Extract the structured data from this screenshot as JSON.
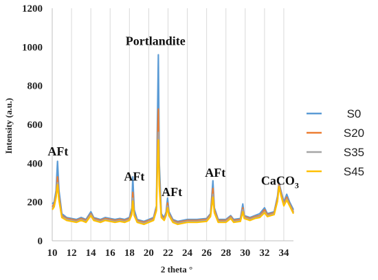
{
  "chart_data": {
    "type": "line",
    "xlabel": "2 theta °",
    "ylabel": "Intensity (a.u.)",
    "xlim": [
      10,
      35
    ],
    "ylim": [
      0,
      1200
    ],
    "x_ticks": [
      "10",
      "12",
      "14",
      "16",
      "18",
      "20",
      "22",
      "24",
      "26",
      "28",
      "30",
      "32",
      "34"
    ],
    "y_ticks": [
      "0",
      "200",
      "400",
      "600",
      "800",
      "1000",
      "1200"
    ],
    "grid": "vertical",
    "legend_position": "right",
    "annotations": [
      {
        "text": "AFt",
        "x": 10.6,
        "y": 440
      },
      {
        "text": "AFt",
        "x": 18.5,
        "y": 310
      },
      {
        "text": "Portlandite",
        "x": 20.7,
        "y": 1010
      },
      {
        "text": "AFt",
        "x": 22.4,
        "y": 230
      },
      {
        "text": "AFt",
        "x": 26.9,
        "y": 330
      },
      {
        "text": "CaCO",
        "sub": "3",
        "x": 33.6,
        "y": 290
      }
    ],
    "series": [
      {
        "name": "S0",
        "color": "#5B9BD5",
        "points": [
          [
            10,
            190
          ],
          [
            10.2,
            200
          ],
          [
            10.4,
            260
          ],
          [
            10.55,
            410
          ],
          [
            10.7,
            260
          ],
          [
            11,
            140
          ],
          [
            11.5,
            120
          ],
          [
            12,
            115
          ],
          [
            12.5,
            110
          ],
          [
            13,
            120
          ],
          [
            13.5,
            110
          ],
          [
            14,
            150
          ],
          [
            14.3,
            120
          ],
          [
            15,
            110
          ],
          [
            15.5,
            120
          ],
          [
            16,
            115
          ],
          [
            16.5,
            110
          ],
          [
            17,
            115
          ],
          [
            17.5,
            110
          ],
          [
            18,
            120
          ],
          [
            18.25,
            170
          ],
          [
            18.35,
            330
          ],
          [
            18.5,
            160
          ],
          [
            18.8,
            110
          ],
          [
            19.5,
            100
          ],
          [
            20,
            110
          ],
          [
            20.5,
            120
          ],
          [
            20.8,
            180
          ],
          [
            20.9,
            600
          ],
          [
            21.0,
            960
          ],
          [
            21.1,
            400
          ],
          [
            21.3,
            140
          ],
          [
            21.6,
            120
          ],
          [
            21.8,
            150
          ],
          [
            21.95,
            220
          ],
          [
            22.1,
            150
          ],
          [
            22.5,
            110
          ],
          [
            23,
            100
          ],
          [
            24,
            110
          ],
          [
            25,
            110
          ],
          [
            26,
            115
          ],
          [
            26.4,
            140
          ],
          [
            26.65,
            310
          ],
          [
            26.8,
            170
          ],
          [
            27.2,
            110
          ],
          [
            28,
            110
          ],
          [
            28.5,
            130
          ],
          [
            28.8,
            110
          ],
          [
            29.5,
            115
          ],
          [
            29.75,
            190
          ],
          [
            29.9,
            130
          ],
          [
            30.5,
            120
          ],
          [
            31,
            130
          ],
          [
            31.5,
            140
          ],
          [
            32,
            170
          ],
          [
            32.3,
            140
          ],
          [
            33,
            150
          ],
          [
            33.35,
            230
          ],
          [
            33.5,
            300
          ],
          [
            33.7,
            260
          ],
          [
            34,
            200
          ],
          [
            34.3,
            240
          ],
          [
            34.6,
            200
          ],
          [
            35,
            160
          ]
        ]
      },
      {
        "name": "S20",
        "color": "#ED7D31",
        "points": [
          [
            10,
            175
          ],
          [
            10.2,
            190
          ],
          [
            10.4,
            240
          ],
          [
            10.55,
            330
          ],
          [
            10.7,
            230
          ],
          [
            11,
            130
          ],
          [
            11.5,
            115
          ],
          [
            12,
            110
          ],
          [
            12.5,
            105
          ],
          [
            13,
            115
          ],
          [
            13.5,
            105
          ],
          [
            14,
            140
          ],
          [
            14.3,
            115
          ],
          [
            15,
            105
          ],
          [
            15.5,
            115
          ],
          [
            16,
            110
          ],
          [
            16.5,
            105
          ],
          [
            17,
            110
          ],
          [
            17.5,
            105
          ],
          [
            18,
            115
          ],
          [
            18.25,
            150
          ],
          [
            18.35,
            250
          ],
          [
            18.5,
            140
          ],
          [
            18.8,
            105
          ],
          [
            19.5,
            95
          ],
          [
            20,
            105
          ],
          [
            20.5,
            115
          ],
          [
            20.8,
            170
          ],
          [
            20.9,
            480
          ],
          [
            21.0,
            680
          ],
          [
            21.1,
            330
          ],
          [
            21.3,
            130
          ],
          [
            21.6,
            115
          ],
          [
            21.8,
            140
          ],
          [
            21.95,
            195
          ],
          [
            22.1,
            140
          ],
          [
            22.5,
            105
          ],
          [
            23,
            95
          ],
          [
            24,
            105
          ],
          [
            25,
            105
          ],
          [
            26,
            110
          ],
          [
            26.4,
            135
          ],
          [
            26.65,
            270
          ],
          [
            26.8,
            160
          ],
          [
            27.2,
            105
          ],
          [
            28,
            105
          ],
          [
            28.5,
            125
          ],
          [
            28.8,
            105
          ],
          [
            29.5,
            110
          ],
          [
            29.75,
            170
          ],
          [
            29.9,
            125
          ],
          [
            30.5,
            115
          ],
          [
            31,
            125
          ],
          [
            31.5,
            130
          ],
          [
            32,
            160
          ],
          [
            32.3,
            135
          ],
          [
            33,
            145
          ],
          [
            33.35,
            220
          ],
          [
            33.5,
            295
          ],
          [
            33.7,
            250
          ],
          [
            34,
            190
          ],
          [
            34.3,
            225
          ],
          [
            34.6,
            190
          ],
          [
            35,
            150
          ]
        ]
      },
      {
        "name": "S35",
        "color": "#A5A5A5",
        "points": [
          [
            10,
            165
          ],
          [
            10.2,
            180
          ],
          [
            10.4,
            230
          ],
          [
            10.55,
            300
          ],
          [
            10.7,
            215
          ],
          [
            11,
            125
          ],
          [
            11.5,
            110
          ],
          [
            12,
            105
          ],
          [
            12.5,
            100
          ],
          [
            13,
            110
          ],
          [
            13.5,
            100
          ],
          [
            14,
            135
          ],
          [
            14.3,
            110
          ],
          [
            15,
            100
          ],
          [
            15.5,
            110
          ],
          [
            16,
            105
          ],
          [
            16.5,
            100
          ],
          [
            17,
            105
          ],
          [
            17.5,
            100
          ],
          [
            18,
            110
          ],
          [
            18.25,
            140
          ],
          [
            18.35,
            220
          ],
          [
            18.5,
            135
          ],
          [
            18.8,
            100
          ],
          [
            19.5,
            90
          ],
          [
            20,
            100
          ],
          [
            20.5,
            110
          ],
          [
            20.8,
            160
          ],
          [
            20.9,
            420
          ],
          [
            21.0,
            560
          ],
          [
            21.1,
            300
          ],
          [
            21.3,
            125
          ],
          [
            21.6,
            110
          ],
          [
            21.8,
            135
          ],
          [
            21.95,
            180
          ],
          [
            22.1,
            135
          ],
          [
            22.5,
            100
          ],
          [
            23,
            90
          ],
          [
            24,
            100
          ],
          [
            25,
            100
          ],
          [
            26,
            105
          ],
          [
            26.4,
            130
          ],
          [
            26.65,
            240
          ],
          [
            26.8,
            150
          ],
          [
            27.2,
            100
          ],
          [
            28,
            100
          ],
          [
            28.5,
            120
          ],
          [
            28.8,
            100
          ],
          [
            29.5,
            105
          ],
          [
            29.75,
            160
          ],
          [
            29.9,
            120
          ],
          [
            30.5,
            110
          ],
          [
            31,
            120
          ],
          [
            31.5,
            125
          ],
          [
            32,
            150
          ],
          [
            32.3,
            130
          ],
          [
            33,
            140
          ],
          [
            33.35,
            210
          ],
          [
            33.5,
            285
          ],
          [
            33.7,
            240
          ],
          [
            34,
            185
          ],
          [
            34.3,
            215
          ],
          [
            34.6,
            185
          ],
          [
            35,
            145
          ]
        ]
      },
      {
        "name": "S45",
        "color": "#FFC000",
        "points": [
          [
            10,
            160
          ],
          [
            10.2,
            175
          ],
          [
            10.4,
            225
          ],
          [
            10.55,
            290
          ],
          [
            10.7,
            210
          ],
          [
            11,
            120
          ],
          [
            11.5,
            105
          ],
          [
            12,
            100
          ],
          [
            12.5,
            95
          ],
          [
            13,
            105
          ],
          [
            13.5,
            95
          ],
          [
            14,
            130
          ],
          [
            14.3,
            105
          ],
          [
            15,
            95
          ],
          [
            15.5,
            105
          ],
          [
            16,
            100
          ],
          [
            16.5,
            95
          ],
          [
            17,
            100
          ],
          [
            17.5,
            95
          ],
          [
            18,
            105
          ],
          [
            18.25,
            135
          ],
          [
            18.35,
            205
          ],
          [
            18.5,
            130
          ],
          [
            18.8,
            95
          ],
          [
            19.5,
            85
          ],
          [
            20,
            95
          ],
          [
            20.5,
            105
          ],
          [
            20.8,
            155
          ],
          [
            20.9,
            380
          ],
          [
            21.0,
            520
          ],
          [
            21.1,
            280
          ],
          [
            21.3,
            120
          ],
          [
            21.6,
            105
          ],
          [
            21.8,
            130
          ],
          [
            21.95,
            170
          ],
          [
            22.1,
            130
          ],
          [
            22.5,
            95
          ],
          [
            23,
            85
          ],
          [
            24,
            95
          ],
          [
            25,
            95
          ],
          [
            26,
            100
          ],
          [
            26.4,
            125
          ],
          [
            26.65,
            225
          ],
          [
            26.8,
            145
          ],
          [
            27.2,
            95
          ],
          [
            28,
            95
          ],
          [
            28.5,
            115
          ],
          [
            28.8,
            95
          ],
          [
            29.5,
            100
          ],
          [
            29.75,
            150
          ],
          [
            29.9,
            115
          ],
          [
            30.5,
            105
          ],
          [
            31,
            115
          ],
          [
            31.5,
            120
          ],
          [
            32,
            145
          ],
          [
            32.3,
            125
          ],
          [
            33,
            135
          ],
          [
            33.35,
            205
          ],
          [
            33.5,
            280
          ],
          [
            33.7,
            235
          ],
          [
            34,
            180
          ],
          [
            34.3,
            210
          ],
          [
            34.6,
            180
          ],
          [
            35,
            140
          ]
        ]
      }
    ]
  }
}
